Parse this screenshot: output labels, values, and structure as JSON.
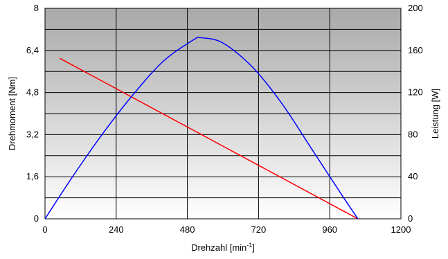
{
  "chart_data": {
    "type": "line",
    "title": "",
    "xlabel": "Drehzahl [min",
    "xlabel_sup": "-1",
    "xlabel_end": "]",
    "ylabel_left": "Drehmoment [Nm]",
    "ylabel_right": "Leistung [W]",
    "xlim": [
      0,
      1200
    ],
    "ylim_left": [
      0,
      8
    ],
    "ylim_right": [
      0,
      200
    ],
    "x_ticks": [
      0,
      240,
      480,
      720,
      960,
      1200
    ],
    "x_tick_labels": [
      "0",
      "240",
      "480",
      "720",
      "960",
      "1200"
    ],
    "y_left_ticks": [
      0,
      1.6,
      3.2,
      4.8,
      6.4,
      8
    ],
    "y_left_tick_labels": [
      "0",
      "1,6",
      "3,2",
      "4,8",
      "6,4",
      "8"
    ],
    "y_right_ticks": [
      0,
      40,
      80,
      120,
      160,
      200
    ],
    "y_right_tick_labels": [
      "0",
      "40",
      "80",
      "120",
      "160",
      "200"
    ],
    "grid": true,
    "background": "gradient-gray-to-white",
    "series": [
      {
        "axis": "left",
        "color": "#ff0000",
        "x": [
          50,
          1055
        ],
        "y": [
          6.1,
          0
        ]
      },
      {
        "axis": "right",
        "color": "#0000ff",
        "x": [
          0,
          100,
          200,
          300,
          400,
          500,
          527,
          600,
          700,
          800,
          900,
          1000,
          1055
        ],
        "y": [
          0,
          43,
          83,
          119,
          150,
          170,
          172,
          167,
          144,
          109,
          66,
          23,
          0
        ]
      }
    ]
  }
}
